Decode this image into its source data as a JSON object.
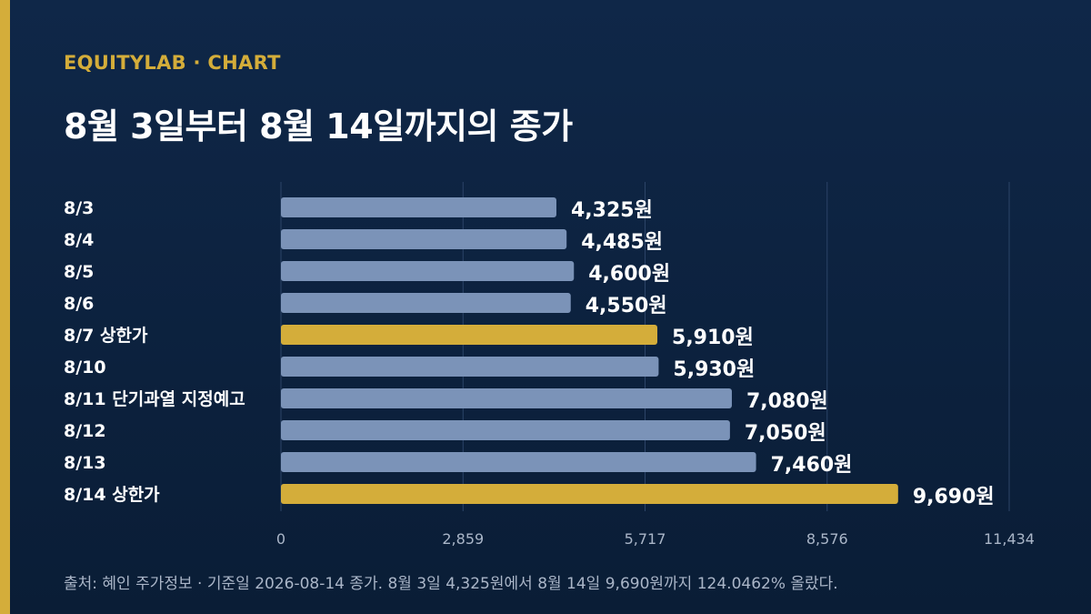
{
  "header": {
    "eyebrow": "EQUITYLAB · CHART",
    "title": "8월 3일부터 8월 14일까지의 종가"
  },
  "footer": {
    "source": "출처: 혜인 주가정보 · 기준일 2026-08-14 종가. 8월 3일 4,325원에서 8월 14일 9,690원까지 124.0462% 올랐다."
  },
  "colors": {
    "accent": "#d4ad3a",
    "bar_default": "#7b93b8",
    "bar_highlight": "#d4ad3a",
    "gridline": "#2c4468"
  },
  "chart_data": {
    "type": "bar",
    "orientation": "horizontal",
    "title": "8월 3일부터 8월 14일까지의 종가",
    "categories": [
      "8/3",
      "8/4",
      "8/5",
      "8/6",
      "8/7 상한가",
      "8/10",
      "8/11 단기과열 지정예고",
      "8/12",
      "8/13",
      "8/14 상한가"
    ],
    "values": [
      4325,
      4485,
      4600,
      4550,
      5910,
      5930,
      7080,
      7050,
      7460,
      9690
    ],
    "value_labels": [
      "4,325원",
      "4,485원",
      "4,600원",
      "4,550원",
      "5,910원",
      "5,930원",
      "7,080원",
      "7,050원",
      "7,460원",
      "9,690원"
    ],
    "highlighted": [
      false,
      false,
      false,
      false,
      true,
      false,
      false,
      false,
      false,
      true
    ],
    "xlim": [
      0,
      11434
    ],
    "x_ticks": [
      0,
      2859,
      5717,
      8576,
      11434
    ],
    "x_tick_labels": [
      "0",
      "2,859",
      "5,717",
      "8,576",
      "11,434"
    ],
    "grid": true
  }
}
